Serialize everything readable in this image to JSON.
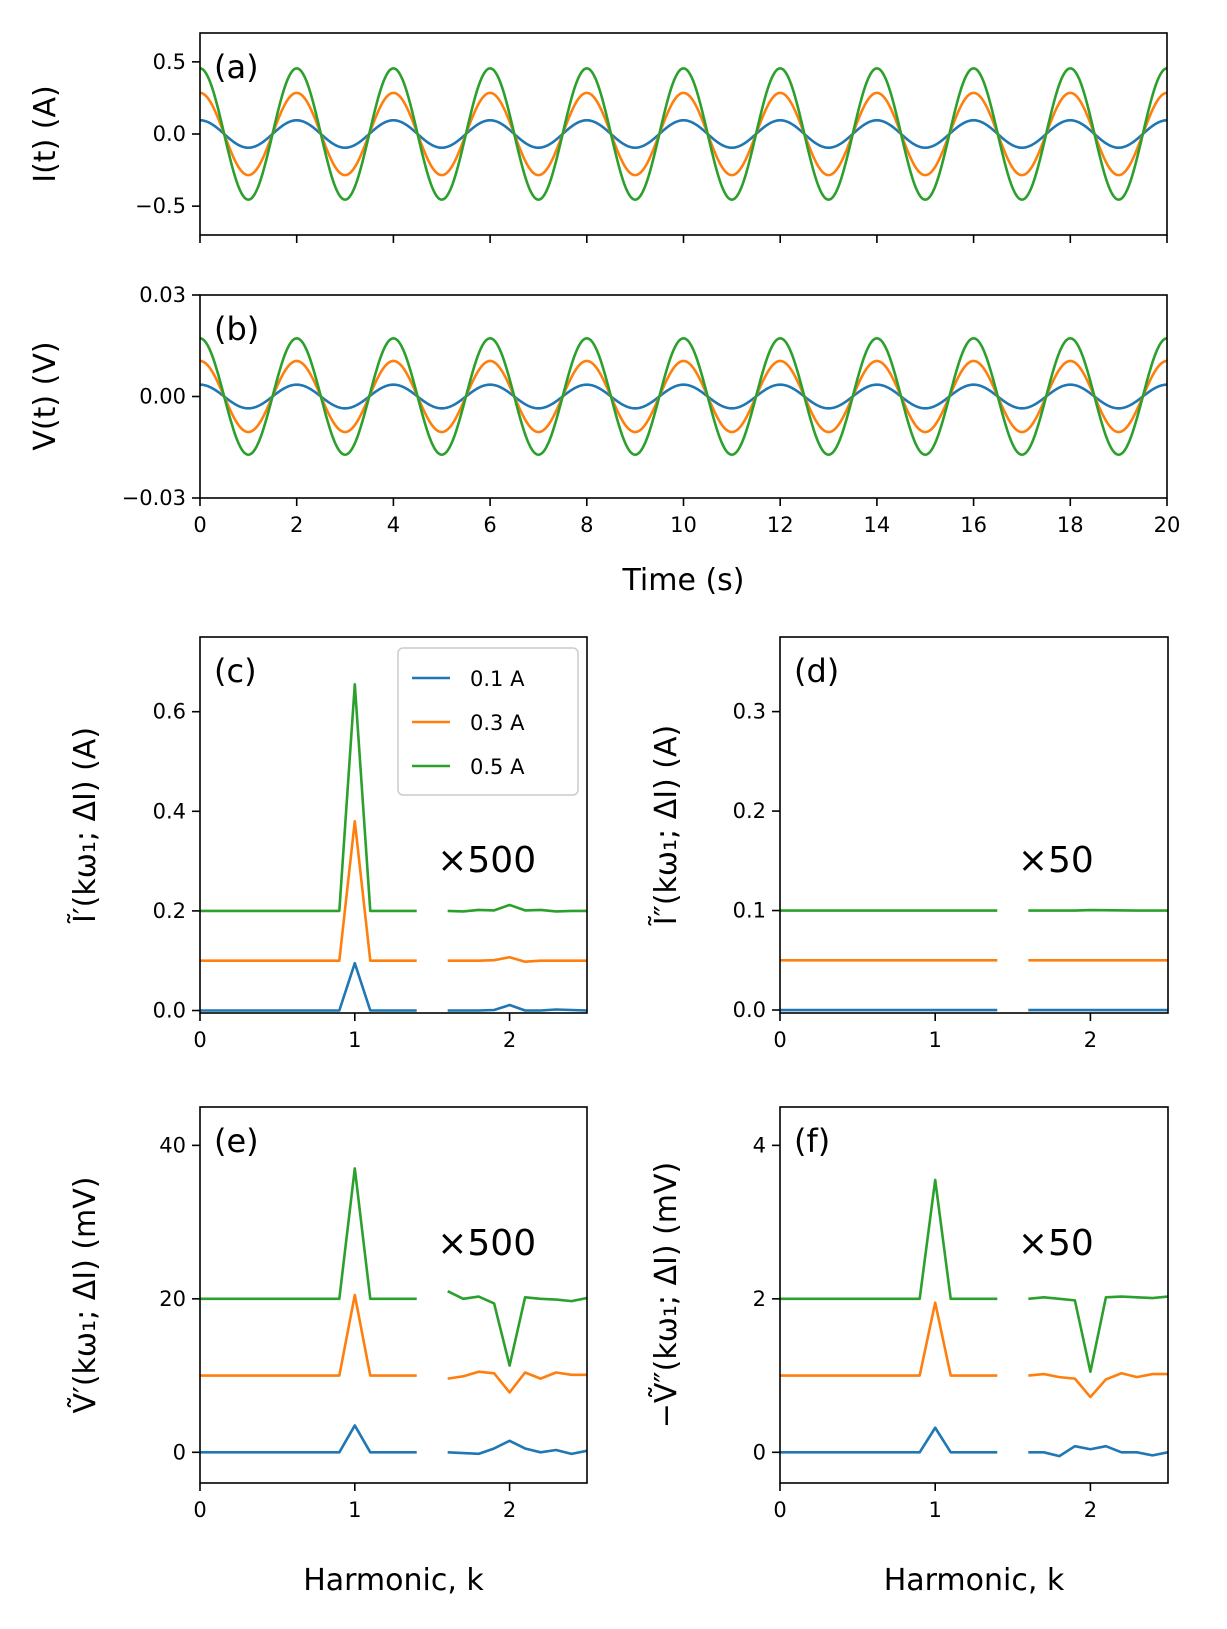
{
  "colors": {
    "series_0": "#1f77b4",
    "series_1": "#ff7f0e",
    "series_2": "#2ca02c"
  },
  "chart_data": [
    {
      "id": "a",
      "type": "line",
      "panel_label": "(a)",
      "xlabel": "",
      "ylabel": "I(t) (A)",
      "xlim": [
        0,
        20
      ],
      "ylim": [
        -0.7,
        0.7
      ],
      "xticks": [
        0,
        2,
        4,
        6,
        8,
        10,
        12,
        14,
        16,
        18,
        20
      ],
      "xtick_labels_shown": false,
      "yticks": [
        -0.5,
        0.0,
        0.5
      ],
      "ytick_labels": [
        "−0.5",
        "0.0",
        "0.5"
      ],
      "signal": {
        "form": "amplitude * cos(pi * t)",
        "period_s": 2
      },
      "series": [
        {
          "name": "0.1 A",
          "amplitude": 0.095
        },
        {
          "name": "0.3 A",
          "amplitude": 0.285
        },
        {
          "name": "0.5 A",
          "amplitude": 0.455
        }
      ]
    },
    {
      "id": "b",
      "type": "line",
      "panel_label": "(b)",
      "xlabel": "Time (s)",
      "ylabel": "V(t) (V)",
      "xlim": [
        0,
        20
      ],
      "ylim": [
        -0.03,
        0.03
      ],
      "xticks": [
        0,
        2,
        4,
        6,
        8,
        10,
        12,
        14,
        16,
        18,
        20
      ],
      "xtick_labels": [
        "0",
        "2",
        "4",
        "6",
        "8",
        "10",
        "12",
        "14",
        "16",
        "18",
        "20"
      ],
      "yticks": [
        -0.03,
        0.0,
        0.03
      ],
      "ytick_labels": [
        "−0.03",
        "0.00",
        "0.03"
      ],
      "signal": {
        "form": "amplitude * cos(pi * t)",
        "period_s": 2
      },
      "series": [
        {
          "name": "0.1 A",
          "amplitude": 0.0035
        },
        {
          "name": "0.3 A",
          "amplitude": 0.0105
        },
        {
          "name": "0.5 A",
          "amplitude": 0.0172
        }
      ]
    },
    {
      "id": "c",
      "type": "line",
      "panel_label": "(c)",
      "xlabel": "",
      "ylabel": "Ĩ′(kω₁; ΔI)  (A)",
      "xlim": [
        0,
        2.5
      ],
      "ylim": [
        -0.005,
        0.75
      ],
      "xticks": [
        0,
        1,
        2
      ],
      "xtick_labels": [
        "0",
        "1",
        "2"
      ],
      "yticks": [
        0.0,
        0.2,
        0.4,
        0.6
      ],
      "ytick_labels": [
        "0.0",
        "0.2",
        "0.4",
        "0.6"
      ],
      "multiplier": "×500",
      "legend": {
        "placement": "top-right",
        "entries": [
          "0.1 A",
          "0.3 A",
          "0.5 A"
        ]
      },
      "series": [
        {
          "name": "0.1 A",
          "segment_1": {
            "x": [
              0,
              0.9,
              1.0,
              1.1,
              1.4
            ],
            "y": [
              0.0,
              0.0,
              0.095,
              0.0,
              0.0
            ]
          },
          "segment_2": {
            "x": [
              1.6,
              1.7,
              1.8,
              1.9,
              2.0,
              2.1,
              2.2,
              2.3,
              2.4,
              2.5
            ],
            "y": [
              0.0,
              0.0,
              0.0,
              0.001,
              0.011,
              0.0,
              0.0,
              0.002,
              0.001,
              0.0
            ]
          }
        },
        {
          "name": "0.3 A",
          "segment_1": {
            "x": [
              0,
              0.9,
              1.0,
              1.1,
              1.4
            ],
            "y": [
              0.1,
              0.1,
              0.38,
              0.1,
              0.1
            ]
          },
          "segment_2": {
            "x": [
              1.6,
              1.7,
              1.8,
              1.9,
              2.0,
              2.1,
              2.2,
              2.3,
              2.4,
              2.5
            ],
            "y": [
              0.1,
              0.1,
              0.1,
              0.101,
              0.107,
              0.098,
              0.1,
              0.1,
              0.1,
              0.1
            ]
          }
        },
        {
          "name": "0.5 A",
          "segment_1": {
            "x": [
              0,
              0.9,
              1.0,
              1.1,
              1.4
            ],
            "y": [
              0.2,
              0.2,
              0.655,
              0.2,
              0.2
            ]
          },
          "segment_2": {
            "x": [
              1.6,
              1.7,
              1.8,
              1.9,
              2.0,
              2.1,
              2.2,
              2.3,
              2.4,
              2.5
            ],
            "y": [
              0.2,
              0.199,
              0.202,
              0.201,
              0.212,
              0.201,
              0.202,
              0.199,
              0.2,
              0.2
            ]
          }
        }
      ]
    },
    {
      "id": "d",
      "type": "line",
      "panel_label": "(d)",
      "xlabel": "",
      "ylabel": "Ĩ″(kω₁; ΔI)  (A)",
      "xlim": [
        0,
        2.5
      ],
      "ylim": [
        -0.003,
        0.375
      ],
      "xticks": [
        0,
        1,
        2
      ],
      "xtick_labels": [
        "0",
        "1",
        "2"
      ],
      "yticks": [
        0.0,
        0.1,
        0.2,
        0.3
      ],
      "ytick_labels": [
        "0.0",
        "0.1",
        "0.2",
        "0.3"
      ],
      "multiplier": "×50",
      "series": [
        {
          "name": "0.1 A",
          "segment_1": {
            "x": [
              0,
              1.4
            ],
            "y": [
              0.0,
              0.0
            ]
          },
          "segment_2": {
            "x": [
              1.6,
              2.5
            ],
            "y": [
              0.0,
              0.0
            ]
          }
        },
        {
          "name": "0.3 A",
          "segment_1": {
            "x": [
              0,
              1.4
            ],
            "y": [
              0.05,
              0.05
            ]
          },
          "segment_2": {
            "x": [
              1.6,
              2.5
            ],
            "y": [
              0.05,
              0.05
            ]
          }
        },
        {
          "name": "0.5 A",
          "segment_1": {
            "x": [
              0,
              1.4
            ],
            "y": [
              0.1,
              0.1
            ]
          },
          "segment_2": {
            "x": [
              1.6,
              1.9,
              2.0,
              2.3,
              2.5
            ],
            "y": [
              0.1,
              0.1,
              0.1005,
              0.1,
              0.1
            ]
          }
        }
      ]
    },
    {
      "id": "e",
      "type": "line",
      "panel_label": "(e)",
      "xlabel": "Harmonic, k",
      "ylabel": "Ṽ′(kω₁; ΔI)  (mV)",
      "xlim": [
        0,
        2.5
      ],
      "ylim": [
        -4,
        45
      ],
      "xticks": [
        0,
        1,
        2
      ],
      "xtick_labels": [
        "0",
        "1",
        "2"
      ],
      "yticks": [
        0,
        20,
        40
      ],
      "ytick_labels": [
        "0",
        "20",
        "40"
      ],
      "multiplier": "×500",
      "series": [
        {
          "name": "0.1 A",
          "segment_1": {
            "x": [
              0,
              0.9,
              1.0,
              1.1,
              1.4
            ],
            "y": [
              0,
              0,
              3.5,
              0,
              0
            ]
          },
          "segment_2": {
            "x": [
              1.6,
              1.7,
              1.8,
              1.9,
              2.0,
              2.1,
              2.2,
              2.3,
              2.4,
              2.5
            ],
            "y": [
              0,
              -0.1,
              -0.2,
              0.5,
              1.5,
              0.5,
              0,
              0.3,
              -0.2,
              0.2
            ]
          }
        },
        {
          "name": "0.3 A",
          "segment_1": {
            "x": [
              0,
              0.9,
              1.0,
              1.1,
              1.4
            ],
            "y": [
              10,
              10,
              20.5,
              10,
              10
            ]
          },
          "segment_2": {
            "x": [
              1.6,
              1.7,
              1.8,
              1.9,
              2.0,
              2.1,
              2.2,
              2.3,
              2.4,
              2.5
            ],
            "y": [
              9.6,
              9.9,
              10.5,
              10.3,
              7.8,
              10.4,
              9.6,
              10.4,
              10.1,
              10.1
            ]
          }
        },
        {
          "name": "0.5 A",
          "segment_1": {
            "x": [
              0,
              0.9,
              1.0,
              1.1,
              1.4
            ],
            "y": [
              20,
              20,
              37,
              20,
              20
            ]
          },
          "segment_2": {
            "x": [
              1.6,
              1.7,
              1.8,
              1.9,
              2.0,
              2.1,
              2.2,
              2.3,
              2.4,
              2.5
            ],
            "y": [
              21,
              20,
              20.3,
              19.4,
              11.3,
              20.2,
              20,
              19.9,
              19.7,
              20.1
            ]
          }
        }
      ]
    },
    {
      "id": "f",
      "type": "line",
      "panel_label": "(f)",
      "xlabel": "Harmonic, k",
      "ylabel": "−Ṽ″(kω₁; ΔI)  (mV)",
      "xlim": [
        0,
        2.5
      ],
      "ylim": [
        -0.4,
        4.5
      ],
      "xticks": [
        0,
        1,
        2
      ],
      "xtick_labels": [
        "0",
        "1",
        "2"
      ],
      "yticks": [
        0,
        2,
        4
      ],
      "ytick_labels": [
        "0",
        "2",
        "4"
      ],
      "multiplier": "×50",
      "series": [
        {
          "name": "0.1 A",
          "segment_1": {
            "x": [
              0,
              0.9,
              1.0,
              1.1,
              1.4
            ],
            "y": [
              0,
              0,
              0.32,
              0,
              0
            ]
          },
          "segment_2": {
            "x": [
              1.6,
              1.7,
              1.8,
              1.9,
              2.0,
              2.1,
              2.2,
              2.3,
              2.4,
              2.5
            ],
            "y": [
              0,
              0,
              -0.05,
              0.08,
              0.04,
              0.08,
              0,
              0,
              -0.04,
              0
            ]
          }
        },
        {
          "name": "0.3 A",
          "segment_1": {
            "x": [
              0,
              0.9,
              1.0,
              1.1,
              1.4
            ],
            "y": [
              1,
              1,
              1.95,
              1,
              1
            ]
          },
          "segment_2": {
            "x": [
              1.6,
              1.7,
              1.8,
              1.9,
              2.0,
              2.1,
              2.2,
              2.3,
              2.4,
              2.5
            ],
            "y": [
              1,
              1.02,
              0.98,
              0.96,
              0.72,
              0.95,
              1.03,
              0.98,
              1.02,
              1.02
            ]
          }
        },
        {
          "name": "0.5 A",
          "segment_1": {
            "x": [
              0,
              0.9,
              1.0,
              1.1,
              1.4
            ],
            "y": [
              2,
              2,
              3.55,
              2,
              2
            ]
          },
          "segment_2": {
            "x": [
              1.6,
              1.7,
              1.8,
              1.9,
              2.0,
              2.1,
              2.2,
              2.3,
              2.4,
              2.5
            ],
            "y": [
              2,
              2.02,
              2,
              1.98,
              1.05,
              2.02,
              2.03,
              2.02,
              2.01,
              2.03
            ]
          }
        }
      ]
    }
  ]
}
